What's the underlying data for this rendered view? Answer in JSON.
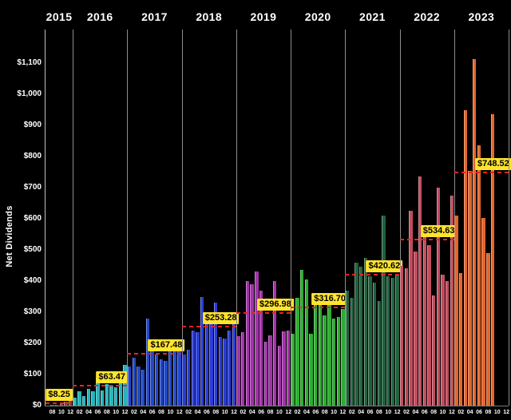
{
  "chart_data": {
    "type": "bar",
    "title": "",
    "ylabel": "Net Dividends",
    "ylim": [
      0,
      1150
    ],
    "grid": "vertical gray separators between years, black background",
    "legend": "none",
    "avg_line_color": "#ee2222",
    "avg_label_bg": "#ffe42e",
    "y_ticks": [
      {
        "value": 0,
        "label": "$0"
      },
      {
        "value": 100,
        "label": "$100"
      },
      {
        "value": 200,
        "label": "$200"
      },
      {
        "value": 300,
        "label": "$300"
      },
      {
        "value": 400,
        "label": "$400"
      },
      {
        "value": 500,
        "label": "$500"
      },
      {
        "value": 600,
        "label": "$600"
      },
      {
        "value": 700,
        "label": "$700"
      },
      {
        "value": 800,
        "label": "$800"
      },
      {
        "value": 900,
        "label": "$900"
      },
      {
        "value": 1000,
        "label": "$1,000"
      },
      {
        "value": 1100,
        "label": "$1,100"
      }
    ],
    "years": [
      {
        "year": "2015",
        "color": "#9a3b3b",
        "slots": 6,
        "first_month": 7,
        "bar_first_month": 8,
        "months": [
          "08",
          "09",
          "10",
          "11",
          "12"
        ],
        "values": [
          1,
          3,
          7,
          12,
          18
        ],
        "tick_labels": [
          "08",
          "10",
          "12"
        ],
        "avg": 8.25,
        "avg_label": "$8.25"
      },
      {
        "year": "2016",
        "color": "#28b4bc",
        "slots": 12,
        "first_month": 1,
        "bar_first_month": 1,
        "months": [
          "01",
          "02",
          "03",
          "04",
          "05",
          "06",
          "07",
          "08",
          "09",
          "10",
          "11",
          "12"
        ],
        "values": [
          25,
          45,
          30,
          55,
          45,
          90,
          50,
          70,
          65,
          60,
          95,
          130
        ],
        "tick_labels": [
          "02",
          "04",
          "06",
          "08",
          "10",
          "12"
        ],
        "avg": 63.47,
        "avg_label": "$63.47"
      },
      {
        "year": "2017",
        "color": "#2148c8",
        "slots": 12,
        "first_month": 1,
        "bar_first_month": 1,
        "months": [
          "01",
          "02",
          "03",
          "04",
          "05",
          "06",
          "07",
          "08",
          "09",
          "10",
          "11",
          "12"
        ],
        "values": [
          125,
          155,
          125,
          115,
          280,
          178,
          165,
          148,
          143,
          207,
          185,
          205
        ],
        "tick_labels": [
          "02",
          "04",
          "06",
          "08",
          "10",
          "12"
        ],
        "avg": 167.48,
        "avg_label": "$167.48"
      },
      {
        "year": "2018",
        "color": "#2a3cd4",
        "slots": 12,
        "first_month": 1,
        "bar_first_month": 1,
        "months": [
          "01",
          "02",
          "03",
          "04",
          "05",
          "06",
          "07",
          "08",
          "09",
          "10",
          "11",
          "12"
        ],
        "values": [
          165,
          180,
          240,
          235,
          350,
          290,
          285,
          330,
          220,
          215,
          240,
          275
        ],
        "tick_labels": [
          "02",
          "04",
          "06",
          "08",
          "10",
          "12"
        ],
        "avg": 253.28,
        "avg_label": "$253.28"
      },
      {
        "year": "2019",
        "color": "#a233aa",
        "slots": 12,
        "first_month": 1,
        "bar_first_month": 1,
        "months": [
          "01",
          "02",
          "03",
          "04",
          "05",
          "06",
          "07",
          "08",
          "09",
          "10",
          "11",
          "12"
        ],
        "values": [
          222,
          235,
          400,
          390,
          430,
          370,
          205,
          225,
          400,
          192,
          238,
          242
        ],
        "tick_labels": [
          "02",
          "04",
          "06",
          "08",
          "10",
          "12"
        ],
        "avg": 296.98,
        "avg_label": "$296.98"
      },
      {
        "year": "2020",
        "color": "#2dad31",
        "slots": 12,
        "first_month": 1,
        "bar_first_month": 1,
        "months": [
          "01",
          "02",
          "03",
          "04",
          "05",
          "06",
          "07",
          "08",
          "09",
          "10",
          "11",
          "12"
        ],
        "values": [
          230,
          345,
          435,
          405,
          230,
          340,
          330,
          290,
          350,
          280,
          285,
          310
        ],
        "tick_labels": [
          "02",
          "04",
          "06",
          "08",
          "10",
          "12"
        ],
        "avg": 316.7,
        "avg_label": "$316.70"
      },
      {
        "year": "2021",
        "color": "#21603d",
        "slots": 12,
        "first_month": 1,
        "bar_first_month": 1,
        "months": [
          "01",
          "02",
          "03",
          "04",
          "05",
          "06",
          "07",
          "08",
          "09",
          "10",
          "11",
          "12"
        ],
        "values": [
          370,
          345,
          460,
          445,
          475,
          415,
          395,
          335,
          610,
          415,
          410,
          420
        ],
        "tick_labels": [
          "02",
          "04",
          "06",
          "08",
          "10",
          "12"
        ],
        "avg": 420.62,
        "avg_label": "$420.62"
      },
      {
        "year": "2022",
        "color": "#c04d5e",
        "slots": 12,
        "first_month": 1,
        "bar_first_month": 1,
        "months": [
          "01",
          "02",
          "03",
          "04",
          "05",
          "06",
          "07",
          "08",
          "09",
          "10",
          "11",
          "12"
        ],
        "values": [
          450,
          440,
          625,
          495,
          735,
          560,
          515,
          355,
          700,
          420,
          400,
          675
        ],
        "tick_labels": [
          "02",
          "04",
          "06",
          "08",
          "10",
          "12"
        ],
        "avg": 534.63,
        "avg_label": "$534.63"
      },
      {
        "year": "2023",
        "color": "#e2662b",
        "slots": 12,
        "first_month": 1,
        "bar_first_month": 1,
        "months": [
          "01",
          "02",
          "03",
          "04",
          "05",
          "06",
          "07",
          "08",
          "09"
        ],
        "values": [
          610,
          425,
          950,
          755,
          1113,
          835,
          602,
          490,
          935
        ],
        "tick_labels": [
          "02",
          "04",
          "06",
          "08",
          "10",
          "12"
        ],
        "avg": 748.52,
        "avg_label": "$748.52"
      }
    ]
  }
}
